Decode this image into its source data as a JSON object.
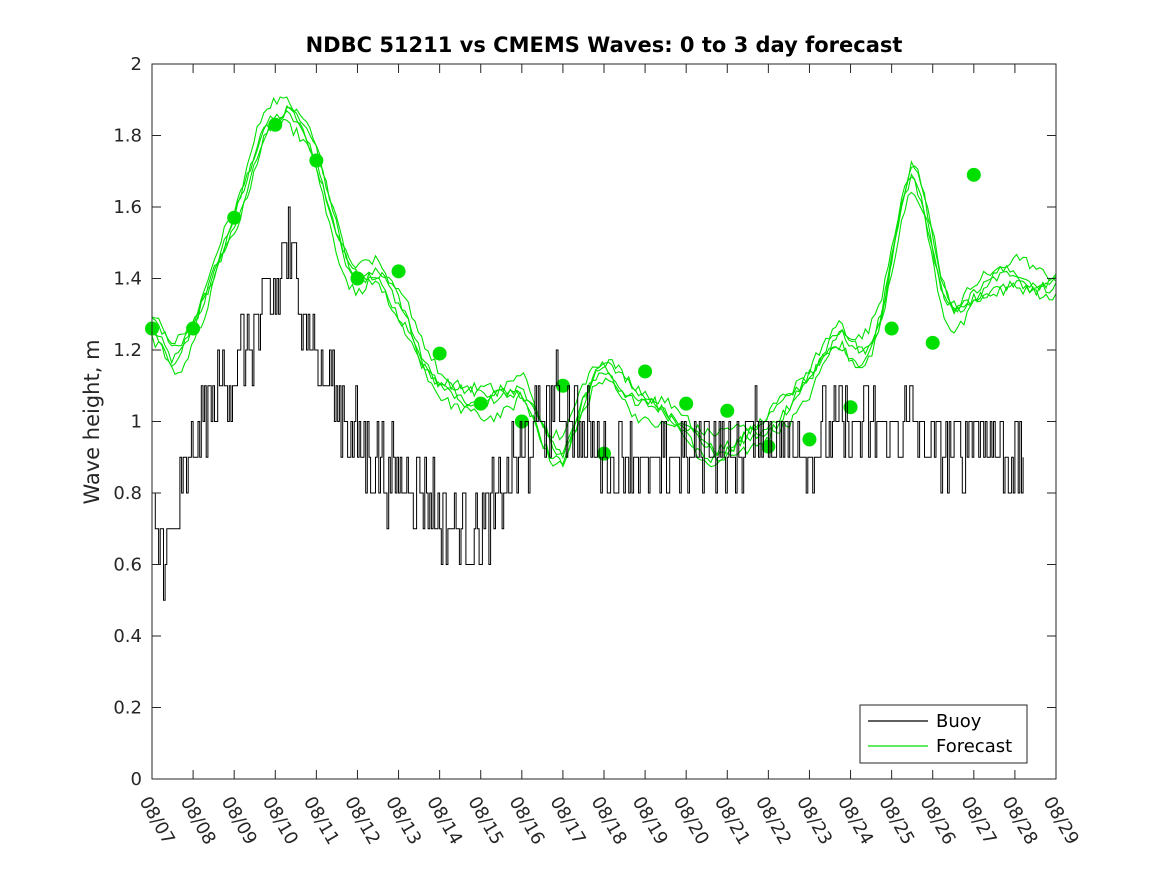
{
  "chart_data": {
    "type": "line",
    "title": "NDBC 51211 vs CMEMS Waves: 0 to 3 day forecast",
    "xlabel": "",
    "ylabel": "Wave height, m",
    "xlim": [
      0,
      22
    ],
    "ylim": [
      0,
      2
    ],
    "x_tick_labels": [
      "08/07",
      "08/08",
      "08/09",
      "08/10",
      "08/11",
      "08/12",
      "08/13",
      "08/14",
      "08/15",
      "08/16",
      "08/17",
      "08/18",
      "08/19",
      "08/20",
      "08/21",
      "08/22",
      "08/23",
      "08/24",
      "08/25",
      "08/26",
      "08/27",
      "08/28",
      "08/29"
    ],
    "y_ticks": [
      0,
      0.2,
      0.4,
      0.6,
      0.8,
      1,
      1.2,
      1.4,
      1.6,
      1.8,
      2
    ],
    "y_tick_labels": [
      "0",
      "0.2",
      "0.4",
      "0.6",
      "0.8",
      "1",
      "1.2",
      "1.4",
      "1.6",
      "1.8",
      "2"
    ],
    "grid": false,
    "legend": {
      "placement": "bottom-right",
      "entries": [
        "Buoy",
        "Forecast"
      ]
    },
    "series": [
      {
        "name": "Buoy",
        "color": "#000000",
        "x": [
          0,
          0.25,
          0.5,
          0.75,
          1,
          1.25,
          1.5,
          1.75,
          2,
          2.25,
          2.5,
          2.75,
          3,
          3.25,
          3.5,
          3.75,
          4,
          4.25,
          4.5,
          4.75,
          5,
          5.25,
          5.5,
          5.75,
          6,
          6.25,
          6.5,
          6.75,
          7,
          7.25,
          7.5,
          7.75,
          8,
          8.25,
          8.5,
          8.75,
          9,
          9.25,
          9.5,
          9.75,
          10,
          10.25,
          10.5,
          10.75,
          11,
          11.25,
          11.5,
          11.75,
          12,
          12.25,
          12.5,
          12.75,
          13,
          13.25,
          13.5,
          13.75,
          14,
          14.25,
          14.5,
          14.75,
          15,
          15.25,
          15.5,
          15.75,
          16,
          16.25,
          16.5,
          16.75,
          17,
          17.25,
          17.5,
          17.75,
          18,
          18.25,
          18.5,
          18.75,
          19,
          19.25,
          19.5,
          19.75,
          20,
          20.25,
          20.5,
          20.75,
          21
        ],
        "y": [
          0.7,
          0.65,
          0.7,
          0.8,
          0.9,
          1.0,
          1.05,
          1.1,
          1.15,
          1.2,
          1.25,
          1.3,
          1.35,
          1.5,
          1.4,
          1.3,
          1.2,
          1.1,
          1.05,
          1.0,
          0.95,
          0.9,
          0.9,
          0.85,
          0.85,
          0.85,
          0.8,
          0.8,
          0.75,
          0.7,
          0.7,
          0.7,
          0.7,
          0.75,
          0.8,
          0.85,
          0.9,
          0.95,
          1.0,
          1.05,
          1.05,
          1.0,
          0.95,
          0.95,
          0.9,
          0.85,
          0.9,
          0.9,
          0.85,
          0.85,
          0.85,
          0.9,
          0.9,
          0.9,
          0.95,
          0.95,
          0.9,
          0.9,
          0.95,
          1.0,
          1.0,
          0.95,
          0.95,
          1.0,
          0.9,
          0.95,
          1.0,
          1.0,
          0.95,
          1.0,
          1.0,
          0.95,
          0.95,
          1.0,
          1.0,
          0.95,
          0.95,
          0.9,
          0.9,
          0.95,
          1.0,
          0.95,
          0.95,
          0.9,
          0.9
        ],
        "range_start": 0,
        "range_end": 21.2
      },
      {
        "name": "Forecast",
        "color": "#00e000",
        "x": [
          0,
          0.25,
          0.5,
          0.75,
          1,
          1.25,
          1.5,
          1.75,
          2,
          2.25,
          2.5,
          2.75,
          3,
          3.25,
          3.5,
          3.75,
          4,
          4.25,
          4.5,
          4.75,
          5,
          5.25,
          5.5,
          5.75,
          6,
          6.25,
          6.5,
          6.75,
          7,
          7.25,
          7.5,
          7.75,
          8,
          8.25,
          8.5,
          8.75,
          9,
          9.25,
          9.5,
          9.75,
          10,
          10.25,
          10.5,
          10.75,
          11,
          11.25,
          11.5,
          11.75,
          12,
          12.25,
          12.5,
          12.75,
          13,
          13.25,
          13.5,
          13.75,
          14,
          14.25,
          14.5,
          14.75,
          15,
          15.25,
          15.5,
          15.75,
          16,
          16.25,
          16.5,
          16.75,
          17,
          17.25,
          17.5,
          17.75,
          18,
          18.25,
          18.5,
          18.75,
          19,
          19.25,
          19.5,
          19.75,
          20,
          20.25,
          20.5,
          20.75,
          21,
          21.25,
          21.5,
          21.75,
          22
        ],
        "y": [
          1.26,
          1.22,
          1.17,
          1.2,
          1.26,
          1.33,
          1.42,
          1.5,
          1.57,
          1.65,
          1.75,
          1.83,
          1.85,
          1.86,
          1.84,
          1.8,
          1.73,
          1.62,
          1.52,
          1.44,
          1.4,
          1.42,
          1.42,
          1.38,
          1.33,
          1.28,
          1.2,
          1.14,
          1.1,
          1.08,
          1.06,
          1.05,
          1.05,
          1.06,
          1.07,
          1.08,
          1.1,
          1.05,
          0.98,
          0.93,
          0.91,
          0.98,
          1.06,
          1.12,
          1.14,
          1.12,
          1.08,
          1.06,
          1.05,
          1.04,
          1.03,
          1.01,
          0.99,
          0.96,
          0.93,
          0.92,
          0.93,
          0.94,
          0.95,
          0.96,
          0.98,
          1.01,
          1.04,
          1.08,
          1.12,
          1.17,
          1.22,
          1.25,
          1.22,
          1.19,
          1.22,
          1.3,
          1.45,
          1.6,
          1.69,
          1.62,
          1.48,
          1.35,
          1.3,
          1.32,
          1.36,
          1.38,
          1.4,
          1.41,
          1.42,
          1.4,
          1.38,
          1.37,
          1.38
        ],
        "markers_x": [
          0,
          1,
          2,
          3,
          4,
          5,
          6,
          7,
          8,
          9,
          10,
          11,
          12,
          13,
          14,
          15,
          16,
          17,
          18,
          19,
          20
        ],
        "markers_y": [
          1.26,
          1.26,
          1.57,
          1.83,
          1.73,
          1.4,
          1.42,
          1.19,
          1.05,
          1.0,
          1.1,
          0.91,
          1.14,
          1.05,
          1.03,
          0.93,
          0.95,
          1.04,
          1.26,
          1.22,
          1.69
        ]
      }
    ]
  }
}
